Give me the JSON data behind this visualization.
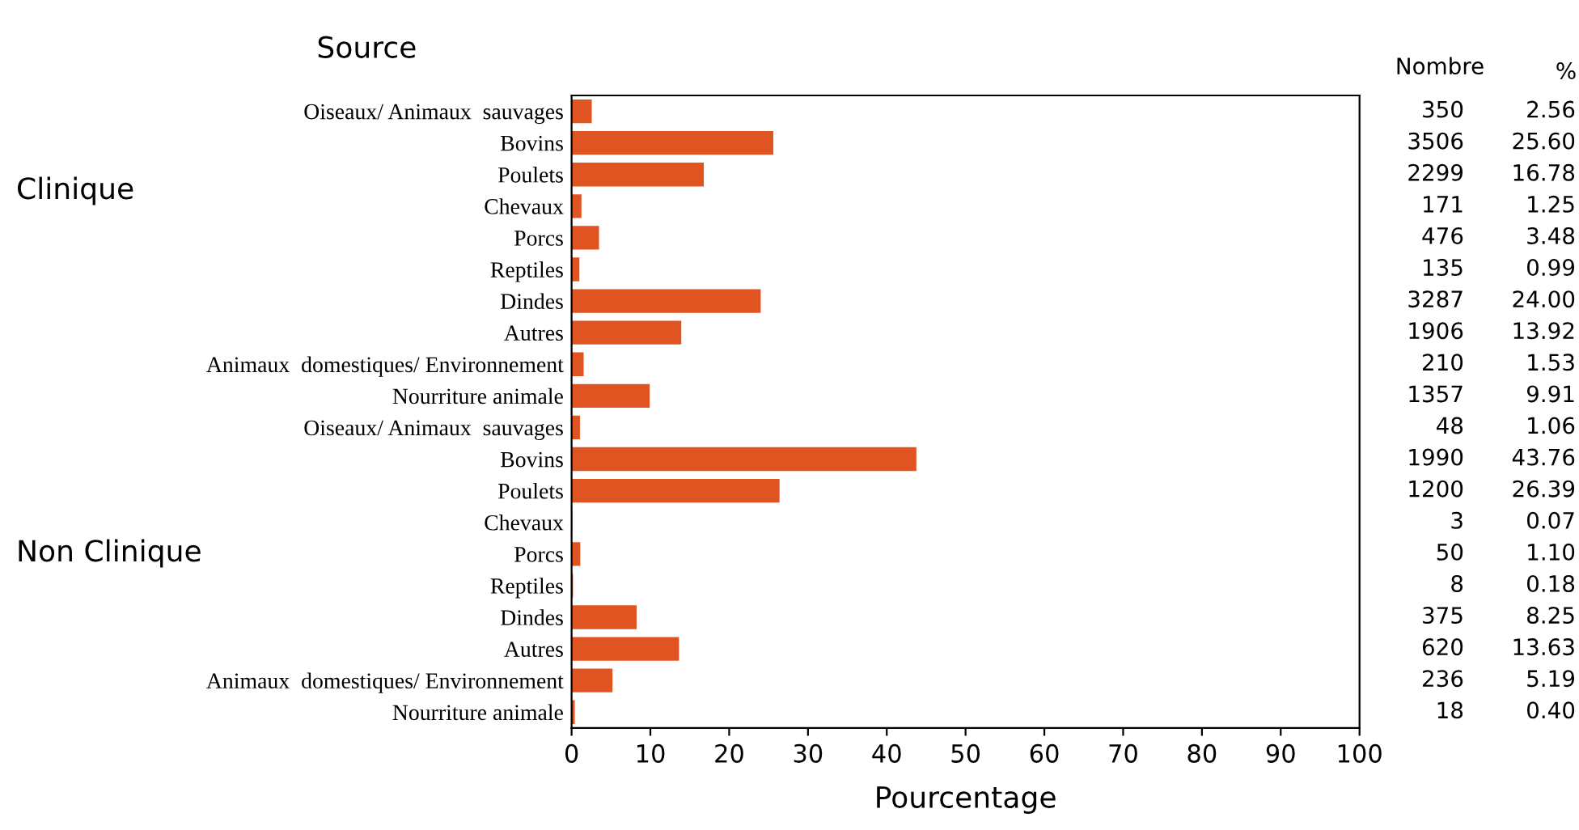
{
  "chart_data": {
    "type": "bar",
    "orientation": "horizontal",
    "xlabel": "Pourcentage",
    "ylabel": "Source",
    "categories": [
      "Oiseaux/ Animaux  sauvages",
      "Bovins",
      "Poulets",
      "Chevaux",
      "Porcs",
      "Reptiles",
      "Dindes",
      "Autres",
      "Animaux  domestiques/ Environnement",
      "Nourriture animale",
      "Oiseaux/ Animaux  sauvages",
      "Bovins",
      "Poulets",
      "Chevaux",
      "Porcs",
      "Reptiles",
      "Dindes",
      "Autres",
      "Animaux  domestiques/ Environnement",
      "Nourriture animale"
    ],
    "values": [
      2.56,
      25.6,
      16.78,
      1.25,
      3.48,
      0.99,
      24.0,
      13.92,
      1.53,
      9.91,
      1.06,
      43.76,
      26.39,
      0.07,
      1.1,
      0.18,
      8.25,
      13.63,
      5.19,
      0.4
    ],
    "value_labels": [
      "2.56",
      "25.60",
      "16.78",
      "1.25",
      "3.48",
      "0.99",
      "24.00",
      "13.92",
      "1.53",
      "9.91",
      "1.06",
      "43.76",
      "26.39",
      "0.07",
      "1.10",
      "0.18",
      "8.25",
      "13.63",
      "5.19",
      "0.40"
    ],
    "color": "#e05422",
    "xlim": [
      0,
      100
    ],
    "xticks": [
      0,
      10,
      20,
      30,
      40,
      50,
      60,
      70,
      80,
      90,
      100
    ],
    "grid": false,
    "legend": false,
    "annotations": [
      "Nombre",
      "%",
      "Clinique",
      "Non Clinique",
      "350",
      "3506",
      "2299",
      "171",
      "476",
      "135",
      "3287",
      "1906",
      "210",
      "1357",
      "48",
      "1990",
      "1200",
      "3",
      "50",
      "8",
      "375",
      "620",
      "236",
      "18"
    ]
  }
}
